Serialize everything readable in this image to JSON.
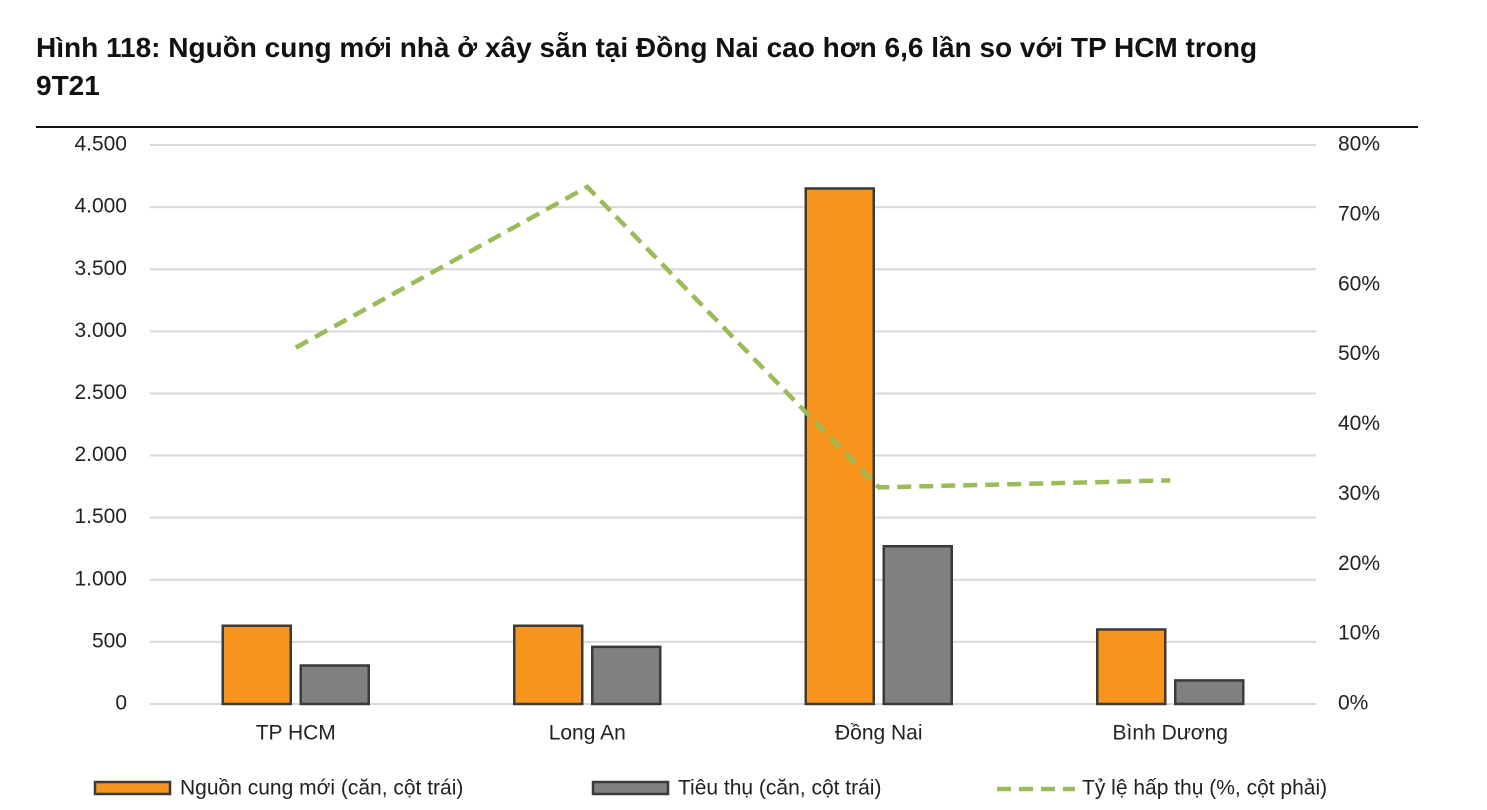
{
  "chart_data": {
    "type": "bar_line",
    "title": "Hình 118: Nguồn cung mới nhà ở xây sẵn tại Đồng Nai cao hơn 6,6 lần so với TP HCM trong 9T21",
    "categories": [
      "TP HCM",
      "Long An",
      "Đồng Nai",
      "Bình Dương"
    ],
    "series": [
      {
        "name": "Nguồn cung mới (căn, cột trái)",
        "color": "#f7941d",
        "type": "bar",
        "values": [
          630,
          630,
          4150,
          600
        ]
      },
      {
        "name": "Tiêu thụ (căn, cột trái)",
        "color": "#808080",
        "type": "bar",
        "values": [
          310,
          460,
          1270,
          190
        ]
      },
      {
        "name": "Tỷ lệ hấp thụ (%, cột phải)",
        "color": "#9bbb59",
        "type": "line",
        "axis": "y2",
        "values": [
          51,
          74,
          31,
          32
        ]
      }
    ],
    "ylim": [
      0,
      4500
    ],
    "yticks": [
      0,
      500,
      {
        "value": 1000,
        "label": "1.000"
      },
      {
        "value": 1500,
        "label": "1.500"
      },
      {
        "value": 2000,
        "label": "2.000"
      },
      {
        "value": 2500,
        "label": "2.500"
      },
      {
        "value": 3000,
        "label": "3.000"
      },
      {
        "value": 3500,
        "label": "3.500"
      },
      {
        "value": 4000,
        "label": "4.000"
      },
      {
        "value": 4500,
        "label": "4.500"
      }
    ],
    "y2lim": [
      0,
      80
    ],
    "y2ticks": [
      {
        "value": 0,
        "label": "0%"
      },
      {
        "value": 10,
        "label": "10%"
      },
      {
        "value": 20,
        "label": "20%"
      },
      {
        "value": 30,
        "label": "30%"
      },
      {
        "value": 40,
        "label": "40%"
      },
      {
        "value": 50,
        "label": "50%"
      },
      {
        "value": 60,
        "label": "60%"
      },
      {
        "value": 70,
        "label": "70%"
      },
      {
        "value": 80,
        "label": "80%"
      }
    ],
    "grid": true
  }
}
